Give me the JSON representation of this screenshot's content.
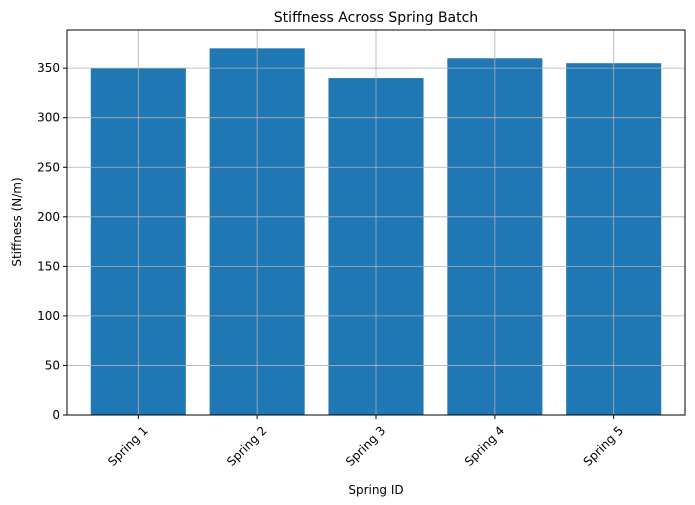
{
  "chart_data": {
    "type": "bar",
    "title": "Stiffness Across Spring Batch",
    "xlabel": "Spring ID",
    "ylabel": "Stiffness (N/m)",
    "categories": [
      "Spring 1",
      "Spring 2",
      "Spring 3",
      "Spring 4",
      "Spring 5"
    ],
    "values": [
      350,
      370,
      340,
      360,
      355
    ],
    "ylim": [
      0,
      388.5
    ],
    "yticks": [
      0,
      50,
      100,
      150,
      200,
      250,
      300,
      350
    ],
    "grid": true,
    "legend": "none",
    "x_tick_rotation_deg": 45,
    "colors": {
      "bar": "#1f77b4",
      "grid": "#b0b0b0",
      "axis": "#000000",
      "background": "#ffffff"
    }
  }
}
